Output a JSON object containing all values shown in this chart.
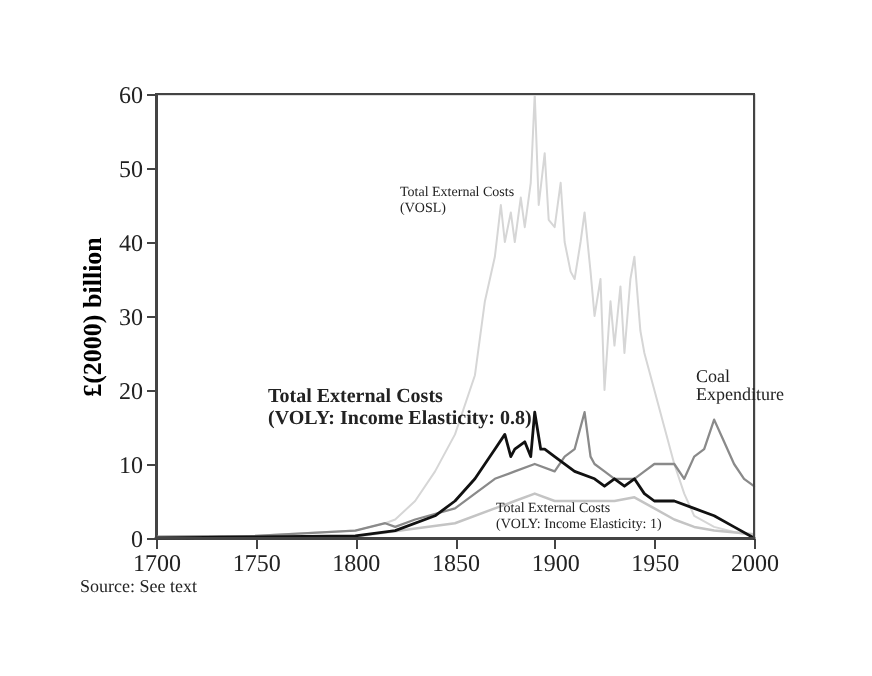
{
  "chart_data": {
    "type": "line",
    "ylabel": "£(2000) billion",
    "xlim": [
      1700,
      2000
    ],
    "xticks": [
      1700,
      1750,
      1800,
      1850,
      1900,
      1950,
      2000
    ],
    "ylim": [
      0,
      60
    ],
    "yticks": [
      0,
      10,
      20,
      30,
      40,
      50,
      60
    ],
    "grid": false,
    "marker": "none",
    "line_style": "solid",
    "series": [
      {
        "name": "Total External Costs\n(VOSL)",
        "color": "#d6d6d6",
        "x": [
          1700,
          1750,
          1800,
          1815,
          1820,
          1830,
          1840,
          1850,
          1860,
          1865,
          1870,
          1873,
          1875,
          1878,
          1880,
          1883,
          1885,
          1888,
          1890,
          1892,
          1895,
          1897,
          1900,
          1903,
          1905,
          1908,
          1910,
          1913,
          1915,
          1918,
          1920,
          1923,
          1925,
          1928,
          1930,
          1933,
          1935,
          1938,
          1940,
          1943,
          1945,
          1950,
          1955,
          1960,
          1965,
          1970,
          1980,
          1990,
          2000
        ],
        "values": [
          0,
          0.3,
          1,
          2,
          2.5,
          5,
          9,
          14,
          22,
          32,
          38,
          45,
          40,
          44,
          40,
          46,
          42,
          48,
          60,
          45,
          52,
          43,
          42,
          48,
          40,
          36,
          35,
          40,
          44,
          36,
          30,
          35,
          20,
          32,
          26,
          34,
          25,
          35,
          38,
          28,
          25,
          20,
          15,
          10,
          6,
          3,
          1.5,
          0.8,
          0.3
        ]
      },
      {
        "name": "Coal\nExpenditure",
        "color": "#8a8a8a",
        "x": [
          1700,
          1750,
          1800,
          1815,
          1820,
          1830,
          1850,
          1860,
          1870,
          1880,
          1890,
          1900,
          1905,
          1910,
          1915,
          1918,
          1920,
          1925,
          1930,
          1940,
          1945,
          1950,
          1960,
          1965,
          1970,
          1975,
          1980,
          1985,
          1990,
          1995,
          2000
        ],
        "values": [
          0.2,
          0.3,
          1,
          2,
          1.5,
          2.5,
          4,
          6,
          8,
          9,
          10,
          9,
          11,
          12,
          17,
          11,
          10,
          9,
          8,
          8,
          9,
          10,
          10,
          8,
          11,
          12,
          16,
          13,
          10,
          8,
          7
        ]
      },
      {
        "name": "Total External Costs\n(VOLY: Income Elasticity: 1)",
        "color": "#c4c4c4",
        "x": [
          1700,
          1800,
          1850,
          1870,
          1880,
          1890,
          1900,
          1920,
          1930,
          1940,
          1950,
          1960,
          1970,
          1980,
          2000
        ],
        "values": [
          0,
          0.2,
          2,
          4,
          5,
          6,
          5,
          5,
          5,
          5.5,
          4,
          2.5,
          1.5,
          1,
          0.5
        ]
      },
      {
        "name": "Total External Costs\n(VOLY: Income Elasticity: 0.8)",
        "color": "#111111",
        "x": [
          1700,
          1800,
          1820,
          1840,
          1850,
          1860,
          1870,
          1875,
          1878,
          1880,
          1885,
          1888,
          1890,
          1893,
          1895,
          1900,
          1910,
          1920,
          1925,
          1930,
          1935,
          1940,
          1945,
          1950,
          1960,
          1970,
          1980,
          1990,
          2000
        ],
        "values": [
          0,
          0.3,
          1,
          3,
          5,
          8,
          12,
          14,
          11,
          12,
          13,
          11,
          17,
          12,
          12,
          11,
          9,
          8,
          7,
          8,
          7,
          8,
          6,
          5,
          5,
          4,
          3,
          1.5,
          0
        ]
      }
    ],
    "annotations": [
      "Source: See text"
    ]
  }
}
